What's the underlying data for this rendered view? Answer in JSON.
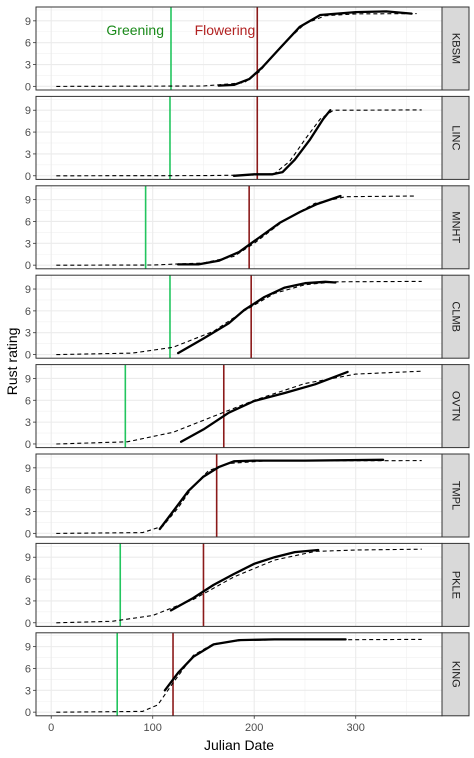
{
  "chart_data": {
    "type": "line",
    "xlabel": "Julian Date",
    "ylabel": "Rust rating",
    "xlim": [
      -15,
      385
    ],
    "ylim": [
      -0.5,
      10.9
    ],
    "xticks": [
      0,
      100,
      200,
      300
    ],
    "yticks": [
      0,
      3,
      6,
      9
    ],
    "line_styles": {
      "observed": "solid",
      "fitted": "dashed"
    },
    "colors": {
      "greening": "#22c55e",
      "flowering": "#8b1a1a",
      "annotation_greening": "#1a8a1a",
      "annotation_flowering": "#b22222",
      "strip_bg": "#d9d9d9"
    },
    "annotations": {
      "greening": "Greening",
      "flowering": "Flowering"
    },
    "panels": [
      {
        "label": "KBSM",
        "greening": 118,
        "flowering": 203,
        "fitted": [
          [
            5,
            0
          ],
          [
            150,
            0.05
          ],
          [
            190,
            0.5
          ],
          [
            205,
            2
          ],
          [
            230,
            6
          ],
          [
            250,
            8.6
          ],
          [
            270,
            9.7
          ],
          [
            300,
            9.95
          ],
          [
            360,
            10
          ]
        ],
        "observed": [
          [
            165,
            0.1
          ],
          [
            180,
            0.2
          ],
          [
            195,
            1
          ],
          [
            208,
            2.6
          ],
          [
            225,
            5.2
          ],
          [
            245,
            8.2
          ],
          [
            265,
            9.8
          ],
          [
            300,
            10.2
          ],
          [
            330,
            10.3
          ],
          [
            355,
            10
          ]
        ]
      },
      {
        "label": "LINC",
        "greening": 117,
        "flowering": 203,
        "fitted": [
          [
            5,
            0
          ],
          [
            150,
            0.02
          ],
          [
            200,
            0.1
          ],
          [
            220,
            0.3
          ],
          [
            235,
            2
          ],
          [
            250,
            5
          ],
          [
            265,
            7.8
          ],
          [
            278,
            9
          ],
          [
            300,
            9
          ],
          [
            365,
            9.05
          ]
        ],
        "observed": [
          [
            180,
            0
          ],
          [
            200,
            0.2
          ],
          [
            218,
            0.2
          ],
          [
            228,
            0.5
          ],
          [
            240,
            2.2
          ],
          [
            255,
            5
          ],
          [
            268,
            7.8
          ],
          [
            275,
            9
          ]
        ]
      },
      {
        "label": "MNHT",
        "greening": 93,
        "flowering": 195,
        "fitted": [
          [
            5,
            0
          ],
          [
            100,
            0.02
          ],
          [
            150,
            0.3
          ],
          [
            180,
            1.2
          ],
          [
            200,
            3
          ],
          [
            230,
            6.2
          ],
          [
            260,
            8.5
          ],
          [
            290,
            9.4
          ],
          [
            360,
            9.5
          ]
        ],
        "observed": [
          [
            125,
            0.1
          ],
          [
            145,
            0.1
          ],
          [
            165,
            0.6
          ],
          [
            185,
            1.8
          ],
          [
            205,
            3.8
          ],
          [
            225,
            5.8
          ],
          [
            245,
            7.3
          ],
          [
            262,
            8.4
          ],
          [
            285,
            9.5
          ]
        ]
      },
      {
        "label": "CLMB",
        "greening": 117,
        "flowering": 197,
        "fitted": [
          [
            5,
            0
          ],
          [
            80,
            0.2
          ],
          [
            120,
            1
          ],
          [
            160,
            3.2
          ],
          [
            190,
            6
          ],
          [
            220,
            8.4
          ],
          [
            250,
            9.6
          ],
          [
            280,
            10
          ],
          [
            365,
            10.05
          ]
        ],
        "observed": [
          [
            125,
            0.2
          ],
          [
            150,
            2.2
          ],
          [
            175,
            4.3
          ],
          [
            190,
            6.1
          ],
          [
            210,
            7.9
          ],
          [
            230,
            9.2
          ],
          [
            250,
            9.8
          ],
          [
            270,
            10
          ],
          [
            280,
            9.9
          ]
        ]
      },
      {
        "label": "OVTN",
        "greening": 73,
        "flowering": 170,
        "fitted": [
          [
            5,
            0
          ],
          [
            75,
            0.3
          ],
          [
            120,
            1.6
          ],
          [
            160,
            3.8
          ],
          [
            200,
            6
          ],
          [
            250,
            8.3
          ],
          [
            300,
            9.6
          ],
          [
            365,
            10
          ]
        ],
        "observed": [
          [
            128,
            0.3
          ],
          [
            150,
            2
          ],
          [
            175,
            4.3
          ],
          [
            200,
            5.9
          ],
          [
            230,
            7
          ],
          [
            260,
            8.2
          ],
          [
            292,
            9.9
          ]
        ]
      },
      {
        "label": "TMPL",
        "greening": null,
        "flowering": 163,
        "fitted": [
          [
            5,
            0
          ],
          [
            90,
            0.1
          ],
          [
            110,
            1
          ],
          [
            125,
            3.5
          ],
          [
            140,
            6.5
          ],
          [
            155,
            8.6
          ],
          [
            175,
            9.6
          ],
          [
            210,
            9.95
          ],
          [
            365,
            10
          ]
        ],
        "observed": [
          [
            107,
            0.6
          ],
          [
            120,
            3
          ],
          [
            135,
            5.8
          ],
          [
            150,
            7.8
          ],
          [
            165,
            9.1
          ],
          [
            180,
            9.9
          ],
          [
            200,
            10
          ],
          [
            250,
            10
          ],
          [
            327,
            10.1
          ]
        ]
      },
      {
        "label": "PKLE",
        "greening": 68,
        "flowering": 150,
        "fitted": [
          [
            5,
            0
          ],
          [
            60,
            0.2
          ],
          [
            100,
            1
          ],
          [
            140,
            3.2
          ],
          [
            180,
            6.3
          ],
          [
            220,
            8.6
          ],
          [
            260,
            9.8
          ],
          [
            300,
            10
          ],
          [
            365,
            10.1
          ]
        ],
        "observed": [
          [
            118,
            1.7
          ],
          [
            140,
            3.4
          ],
          [
            160,
            5.2
          ],
          [
            180,
            6.7
          ],
          [
            200,
            8.1
          ],
          [
            220,
            9
          ],
          [
            240,
            9.7
          ],
          [
            263,
            10
          ]
        ]
      },
      {
        "label": "KING",
        "greening": 65,
        "flowering": 120,
        "fitted": [
          [
            5,
            0
          ],
          [
            90,
            0.1
          ],
          [
            105,
            1
          ],
          [
            120,
            4
          ],
          [
            140,
            7.8
          ],
          [
            160,
            9.4
          ],
          [
            190,
            9.9
          ],
          [
            365,
            10
          ]
        ],
        "observed": [
          [
            112,
            3
          ],
          [
            125,
            5.4
          ],
          [
            140,
            7.6
          ],
          [
            160,
            9.3
          ],
          [
            185,
            9.9
          ],
          [
            220,
            10
          ],
          [
            290,
            10
          ]
        ]
      }
    ]
  }
}
